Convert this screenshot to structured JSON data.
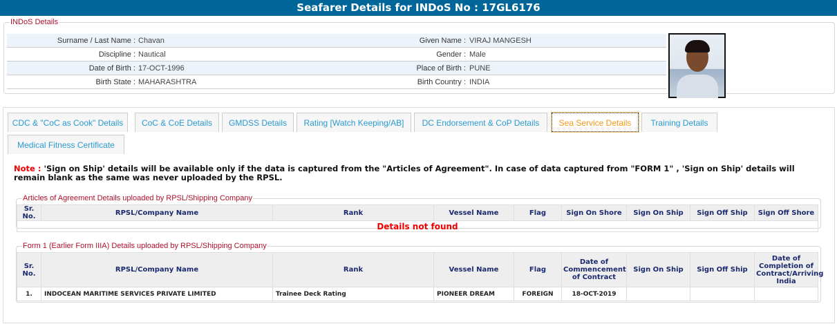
{
  "header": {
    "title": "Seafarer Details for INDoS No : 17GL6176"
  },
  "indos": {
    "legend": "INDoS Details",
    "rows": [
      {
        "l1": "Surname / Last Name :",
        "v1": "Chavan",
        "l2": "Given Name :",
        "v2": "VIRAJ MANGESH"
      },
      {
        "l1": "Discipline :",
        "v1": "Nautical",
        "l2": "Gender :",
        "v2": "Male"
      },
      {
        "l1": "Date of Birth :",
        "v1": "17-OCT-1996",
        "l2": "Place of Birth :",
        "v2": "PUNE"
      },
      {
        "l1": "Birth State :",
        "v1": "MAHARASHTRA",
        "l2": "Birth Country :",
        "v2": "INDIA"
      }
    ]
  },
  "tabs": [
    "CDC & \"CoC as Cook\" Details",
    "CoC & CoE Details",
    "GMDSS Details",
    "Rating [Watch Keeping/AB]",
    "DC Endorsement & CoP Details",
    "Sea Service Details",
    "Training Details",
    "Medical Fitness Certificate"
  ],
  "active_tab": "Sea Service Details",
  "note": {
    "prefix": "Note :",
    "text": " 'Sign on Ship' details will be available only if the data is captured from the \"Articles of Agreement\". In case of data captured from \"FORM 1\" , 'Sign on Ship' details will remain blank as the same was never uploaded by the RPSL."
  },
  "articles": {
    "legend": "Articles of Agreement Details uploaded by RPSL/Shipping Company",
    "headers": [
      "Sr. No.",
      "RPSL/Company Name",
      "Rank",
      "Vessel Name",
      "Flag",
      "Sign On Shore",
      "Sign On Ship",
      "Sign Off Ship",
      "Sign Off Shore"
    ],
    "empty": "Details not found"
  },
  "form1": {
    "legend": "Form 1 (Earlier Form IIIA) Details uploaded by RPSL/Shipping Company",
    "headers": [
      "Sr. No.",
      "RPSL/Company Name",
      "Rank",
      "Vessel Name",
      "Flag",
      "Date of Commencement of Contract",
      "Sign On Ship",
      "Sign Off Ship",
      "Date of Completion of Contract/Arriving India"
    ],
    "rows": [
      [
        "1.",
        "INDOCEAN MARITIME SERVICES PRIVATE LIMITED",
        "Trainee Deck Rating",
        "PIONEER DREAM",
        "FOREIGN",
        "18-OCT-2019",
        "",
        "",
        ""
      ]
    ]
  }
}
